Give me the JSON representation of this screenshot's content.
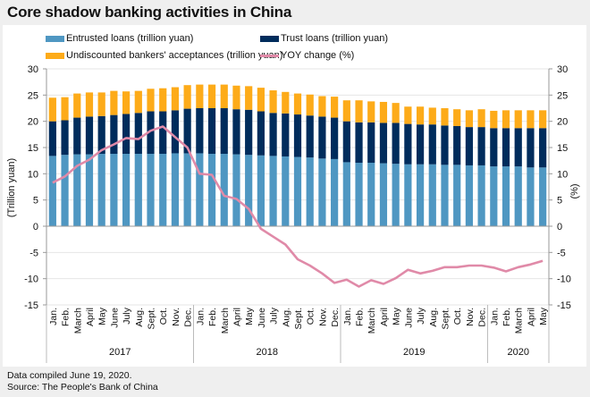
{
  "chart_data": {
    "type": "bar",
    "title": "Core shadow banking activities in China",
    "ylabel_left": "(Trillion yuan)",
    "ylabel_right": "(%)",
    "ylim": [
      -15,
      30
    ],
    "yticks": [
      30,
      25,
      20,
      15,
      10,
      5,
      0,
      -5,
      -10,
      -15
    ],
    "grid": true,
    "legend": "top",
    "colors": {
      "entrusted": "#4f97c2",
      "trust": "#002c5c",
      "undiscounted": "#fdab19",
      "yoy": "#e08aa8"
    },
    "legend_entries": [
      {
        "key": "entrusted",
        "label": "Entrusted loans (trillion yuan)",
        "kind": "bar"
      },
      {
        "key": "trust",
        "label": "Trust loans (trillion yuan)",
        "kind": "bar"
      },
      {
        "key": "undiscounted",
        "label": "Undiscounted bankers' acceptances (trillion yuan)",
        "kind": "bar"
      },
      {
        "key": "yoy",
        "label": "YOY change (%)",
        "kind": "line"
      }
    ],
    "years": [
      {
        "label": "2017",
        "months": 12
      },
      {
        "label": "2018",
        "months": 12
      },
      {
        "label": "2019",
        "months": 12
      },
      {
        "label": "2020",
        "months": 5
      }
    ],
    "categories": [
      "Jan.",
      "Feb.",
      "March",
      "April",
      "May",
      "June",
      "July",
      "Aug.",
      "Sept.",
      "Oct.",
      "Nov.",
      "Dec.",
      "Jan.",
      "Feb.",
      "March",
      "April",
      "May",
      "June",
      "July",
      "Aug.",
      "Sept.",
      "Oct.",
      "Nov.",
      "Dec.",
      "Jan.",
      "Feb.",
      "March",
      "April",
      "May",
      "June",
      "July",
      "Aug.",
      "Sept.",
      "Oct.",
      "Nov.",
      "Dec.",
      "Jan.",
      "Feb.",
      "March",
      "April",
      "May"
    ],
    "series": [
      {
        "name": "Entrusted loans (trillion yuan)",
        "key": "entrusted",
        "values": [
          13.4,
          13.6,
          13.7,
          13.7,
          13.8,
          13.8,
          13.8,
          13.8,
          13.8,
          13.8,
          13.9,
          13.9,
          13.9,
          13.8,
          13.8,
          13.7,
          13.6,
          13.5,
          13.4,
          13.3,
          13.2,
          13.1,
          12.9,
          12.8,
          12.2,
          12.1,
          12.1,
          12.0,
          11.9,
          11.8,
          11.8,
          11.8,
          11.7,
          11.7,
          11.6,
          11.6,
          11.4,
          11.4,
          11.4,
          11.2,
          11.2
        ]
      },
      {
        "name": "Trust loans (trillion yuan)",
        "key": "trust",
        "values": [
          6.6,
          6.6,
          7.0,
          7.2,
          7.2,
          7.4,
          7.6,
          7.8,
          8.1,
          8.1,
          8.2,
          8.5,
          8.6,
          8.7,
          8.7,
          8.6,
          8.6,
          8.4,
          8.2,
          8.2,
          8.1,
          8.0,
          8.0,
          7.9,
          7.8,
          7.7,
          7.7,
          7.7,
          7.8,
          7.7,
          7.6,
          7.6,
          7.5,
          7.4,
          7.3,
          7.3,
          7.3,
          7.3,
          7.3,
          7.5,
          7.5
        ]
      },
      {
        "name": "Undiscounted bankers' acceptances (trillion yuan)",
        "key": "undiscounted",
        "values": [
          4.5,
          4.4,
          4.6,
          4.6,
          4.5,
          4.6,
          4.3,
          4.2,
          4.3,
          4.4,
          4.4,
          4.5,
          4.5,
          4.5,
          4.5,
          4.5,
          4.5,
          4.5,
          4.3,
          4.1,
          4.0,
          4.0,
          3.9,
          4.0,
          4.0,
          4.2,
          4.0,
          4.0,
          3.8,
          3.3,
          3.4,
          3.2,
          3.3,
          3.2,
          3.2,
          3.4,
          3.3,
          3.4,
          3.4,
          3.4,
          3.4
        ]
      },
      {
        "name": "YOY change (%)",
        "key": "yoy",
        "type": "line",
        "values": [
          8.3,
          9.5,
          11.5,
          12.7,
          14.5,
          15.6,
          16.8,
          16.6,
          18.2,
          19.0,
          17.0,
          15.0,
          10.0,
          9.8,
          5.8,
          5.2,
          3.3,
          -0.5,
          -2.0,
          -3.5,
          -6.3,
          -7.5,
          -9.0,
          -10.8,
          -10.2,
          -11.5,
          -10.3,
          -11.0,
          -9.9,
          -8.3,
          -9.0,
          -8.5,
          -7.8,
          -7.8,
          -7.5,
          -7.5,
          -7.9,
          -8.6,
          -7.8,
          -7.3,
          -6.6
        ]
      }
    ]
  },
  "footer": {
    "line1": "Data compiled June 19, 2020.",
    "line2": "Source: The People's Bank of China"
  }
}
